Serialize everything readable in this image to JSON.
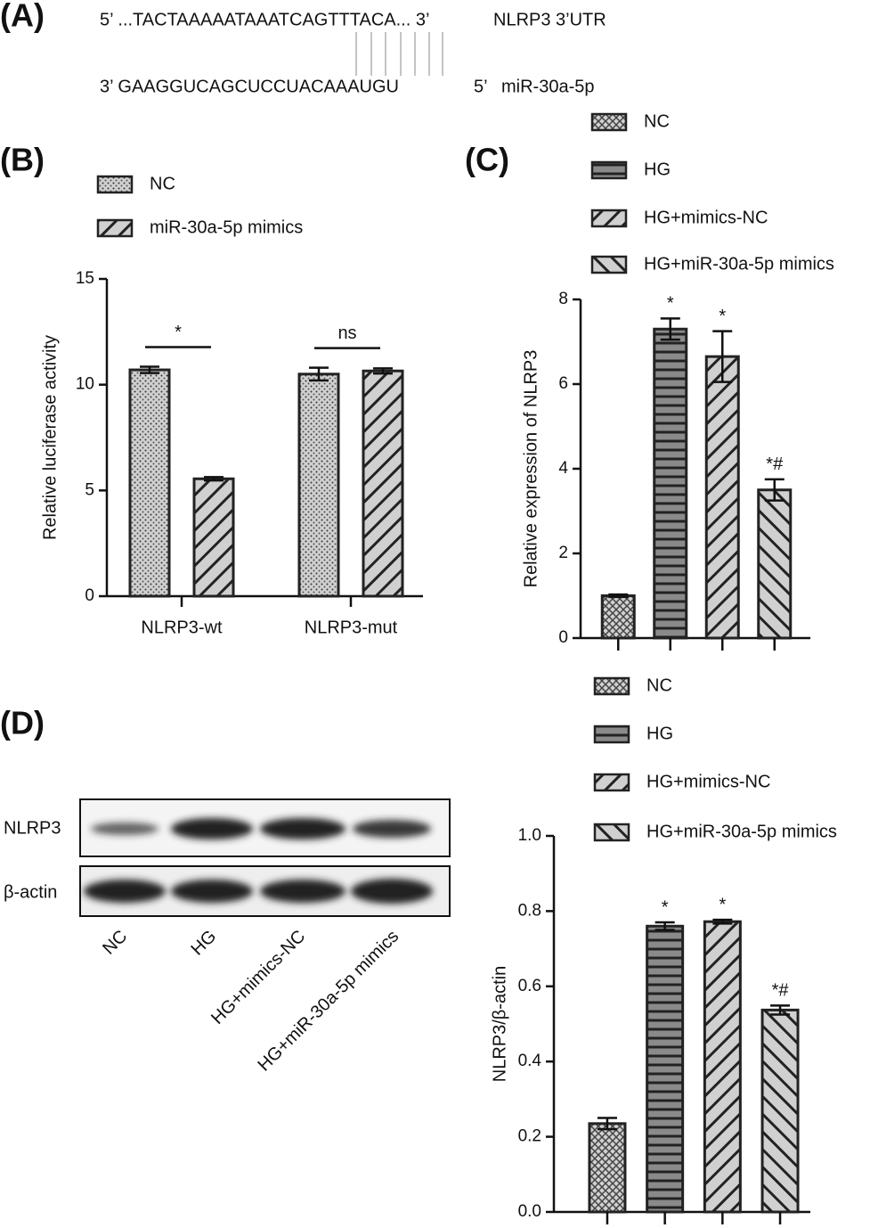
{
  "panel_labels": [
    "(A)",
    "(B)",
    "(C)",
    "(D)"
  ],
  "sequence": {
    "top": "5’ ...TACTAAAAATAAATCAGTTTACA... 3’",
    "top_name": "NLRP3 3’UTR",
    "bottom": "3’ GAAGGUCAGCUCCUACAAAUGU",
    "bottom_end": "5’",
    "bottom_name": "miR-30a-5p"
  },
  "blot": {
    "rows": [
      "NLRP3",
      "β-actin"
    ],
    "lanes": [
      "NC",
      "HG",
      "HG+mimics-NC",
      "HG+miR-30a-5p mimics"
    ]
  },
  "chart_data": [
    {
      "type": "bar",
      "y_label": "Relative luciferase activity",
      "categories": [
        "NLRP3-wt",
        "NLRP3-mut"
      ],
      "series": [
        {
          "name": "NC",
          "color": "#d0d0d0",
          "pattern": "dots",
          "values": [
            10.7,
            10.5
          ],
          "errors": [
            0.15,
            0.3
          ]
        },
        {
          "name": "miR-30a-5p mimics",
          "color": "#d0d0d0",
          "pattern": "diagonal",
          "values": [
            5.55,
            10.65
          ],
          "errors": [
            0.08,
            0.12
          ]
        }
      ],
      "group_annotations": [
        "*",
        "ns"
      ],
      "ylim": [
        0,
        15
      ],
      "yticks": [
        0,
        5,
        10,
        15
      ]
    },
    {
      "type": "bar",
      "y_label": "Relative expression  of NLRP3",
      "categories": [
        null
      ],
      "series": [
        {
          "name": "NC",
          "color": "#d0d0d0",
          "pattern": "crosshatch",
          "values": [
            1.0
          ],
          "errors": [
            0.03
          ]
        },
        {
          "name": "HG",
          "color": "#8a8a8a",
          "pattern": "horizontal",
          "values": [
            7.3
          ],
          "errors": [
            0.25
          ],
          "annotation": "*"
        },
        {
          "name": "HG+mimics-NC",
          "color": "#d0d0d0",
          "pattern": "diagonal",
          "values": [
            6.65
          ],
          "errors": [
            0.6
          ],
          "annotation": "*"
        },
        {
          "name": "HG+miR-30a-5p mimics",
          "color": "#d0d0d0",
          "pattern": "antidiagonal",
          "values": [
            3.5
          ],
          "errors": [
            0.25
          ],
          "annotation": "*#"
        }
      ],
      "ylim": [
        0,
        8
      ],
      "yticks": [
        0,
        2,
        4,
        6,
        8
      ]
    },
    {
      "type": "bar",
      "y_label": "NLRP3/β-actin",
      "categories": [
        null
      ],
      "series": [
        {
          "name": "NC",
          "color": "#d0d0d0",
          "pattern": "crosshatch",
          "values": [
            0.235
          ],
          "errors": [
            0.015
          ]
        },
        {
          "name": "HG",
          "color": "#8a8a8a",
          "pattern": "horizontal",
          "values": [
            0.76
          ],
          "errors": [
            0.01
          ],
          "annotation": "*"
        },
        {
          "name": "HG+mimics-NC",
          "color": "#d0d0d0",
          "pattern": "diagonal",
          "values": [
            0.772
          ],
          "errors": [
            0.005
          ],
          "annotation": "*"
        },
        {
          "name": "HG+miR-30a-5p mimics",
          "color": "#d0d0d0",
          "pattern": "antidiagonal",
          "values": [
            0.537
          ],
          "errors": [
            0.012
          ],
          "annotation": "*#"
        }
      ],
      "ylim": [
        0,
        1.0
      ],
      "yticks": [
        {
          "value": 0,
          "label": "0.0"
        },
        0.2,
        0.4,
        0.6,
        0.8,
        {
          "value": 1.0,
          "label": "1.0"
        }
      ]
    }
  ]
}
